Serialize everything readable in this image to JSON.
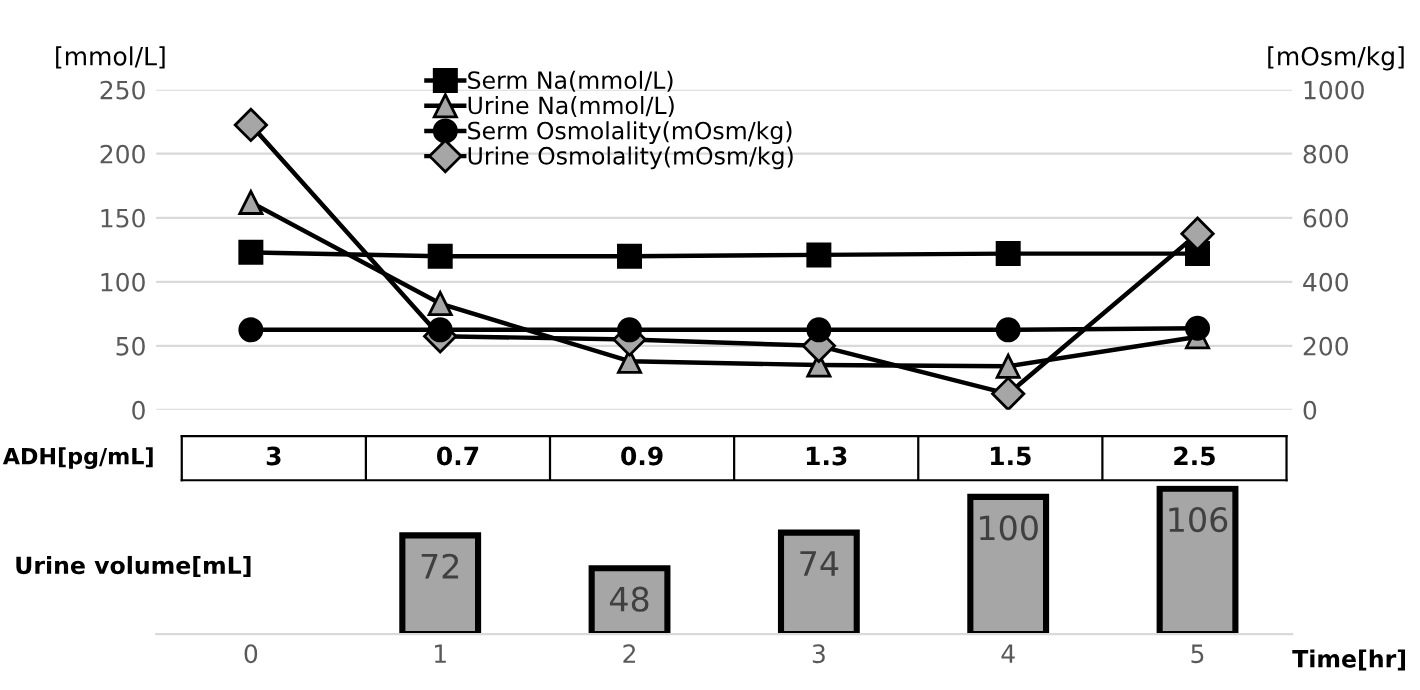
{
  "chart_data": [
    {
      "type": "line",
      "categories": [
        "0",
        "1",
        "2",
        "3",
        "4",
        "5"
      ],
      "ylabel": "[mmol/L]",
      "y2label": "[mOsm/kg]",
      "ylim": [
        0,
        250
      ],
      "yticks": [
        0,
        50,
        100,
        150,
        200,
        250
      ],
      "y2lim": [
        0,
        1000
      ],
      "y2ticks": [
        0,
        200,
        400,
        600,
        800,
        1000
      ],
      "grid": "y",
      "legend": "top",
      "tick_labels": "y",
      "line_style": "solid",
      "series": [
        {
          "name": "Serm Na(mmol/L)",
          "color": "#000000",
          "marker": "square",
          "values": [
            123,
            120,
            120,
            121,
            122,
            122
          ]
        },
        {
          "name": "Urine Na(mmol/L)",
          "color": "#a6a6a6",
          "marker": "triangle",
          "values": [
            162,
            83,
            38,
            35,
            34,
            57
          ]
        },
        {
          "name": "Serm Osmolality(mOsm/kg)",
          "color": "#000000",
          "marker": "circle",
          "axis": "y2",
          "values": [
            250,
            250,
            250,
            250,
            250,
            255
          ]
        },
        {
          "name": "Urine Osmolality(mOsm/kg)",
          "color": "#a6a6a6",
          "marker": "diamond",
          "axis": "y2",
          "values": [
            890,
            230,
            220,
            200,
            50,
            550
          ]
        }
      ]
    },
    {
      "type": "other",
      "title": "ADH[pg/mL]",
      "annotations": [
        "3",
        "0.7",
        "0.9",
        "1.3",
        "1.5",
        "2.5"
      ]
    },
    {
      "type": "bar",
      "categories": [
        "0",
        "1",
        "2",
        "3",
        "4",
        "5"
      ],
      "values": [
        null,
        72,
        48,
        74,
        100,
        106
      ],
      "color": "#a6a6a6",
      "data_labels": true,
      "ylabel": "Urine volume[mL]",
      "xlabel": "Time[hr]",
      "tick_labels": "x"
    }
  ]
}
